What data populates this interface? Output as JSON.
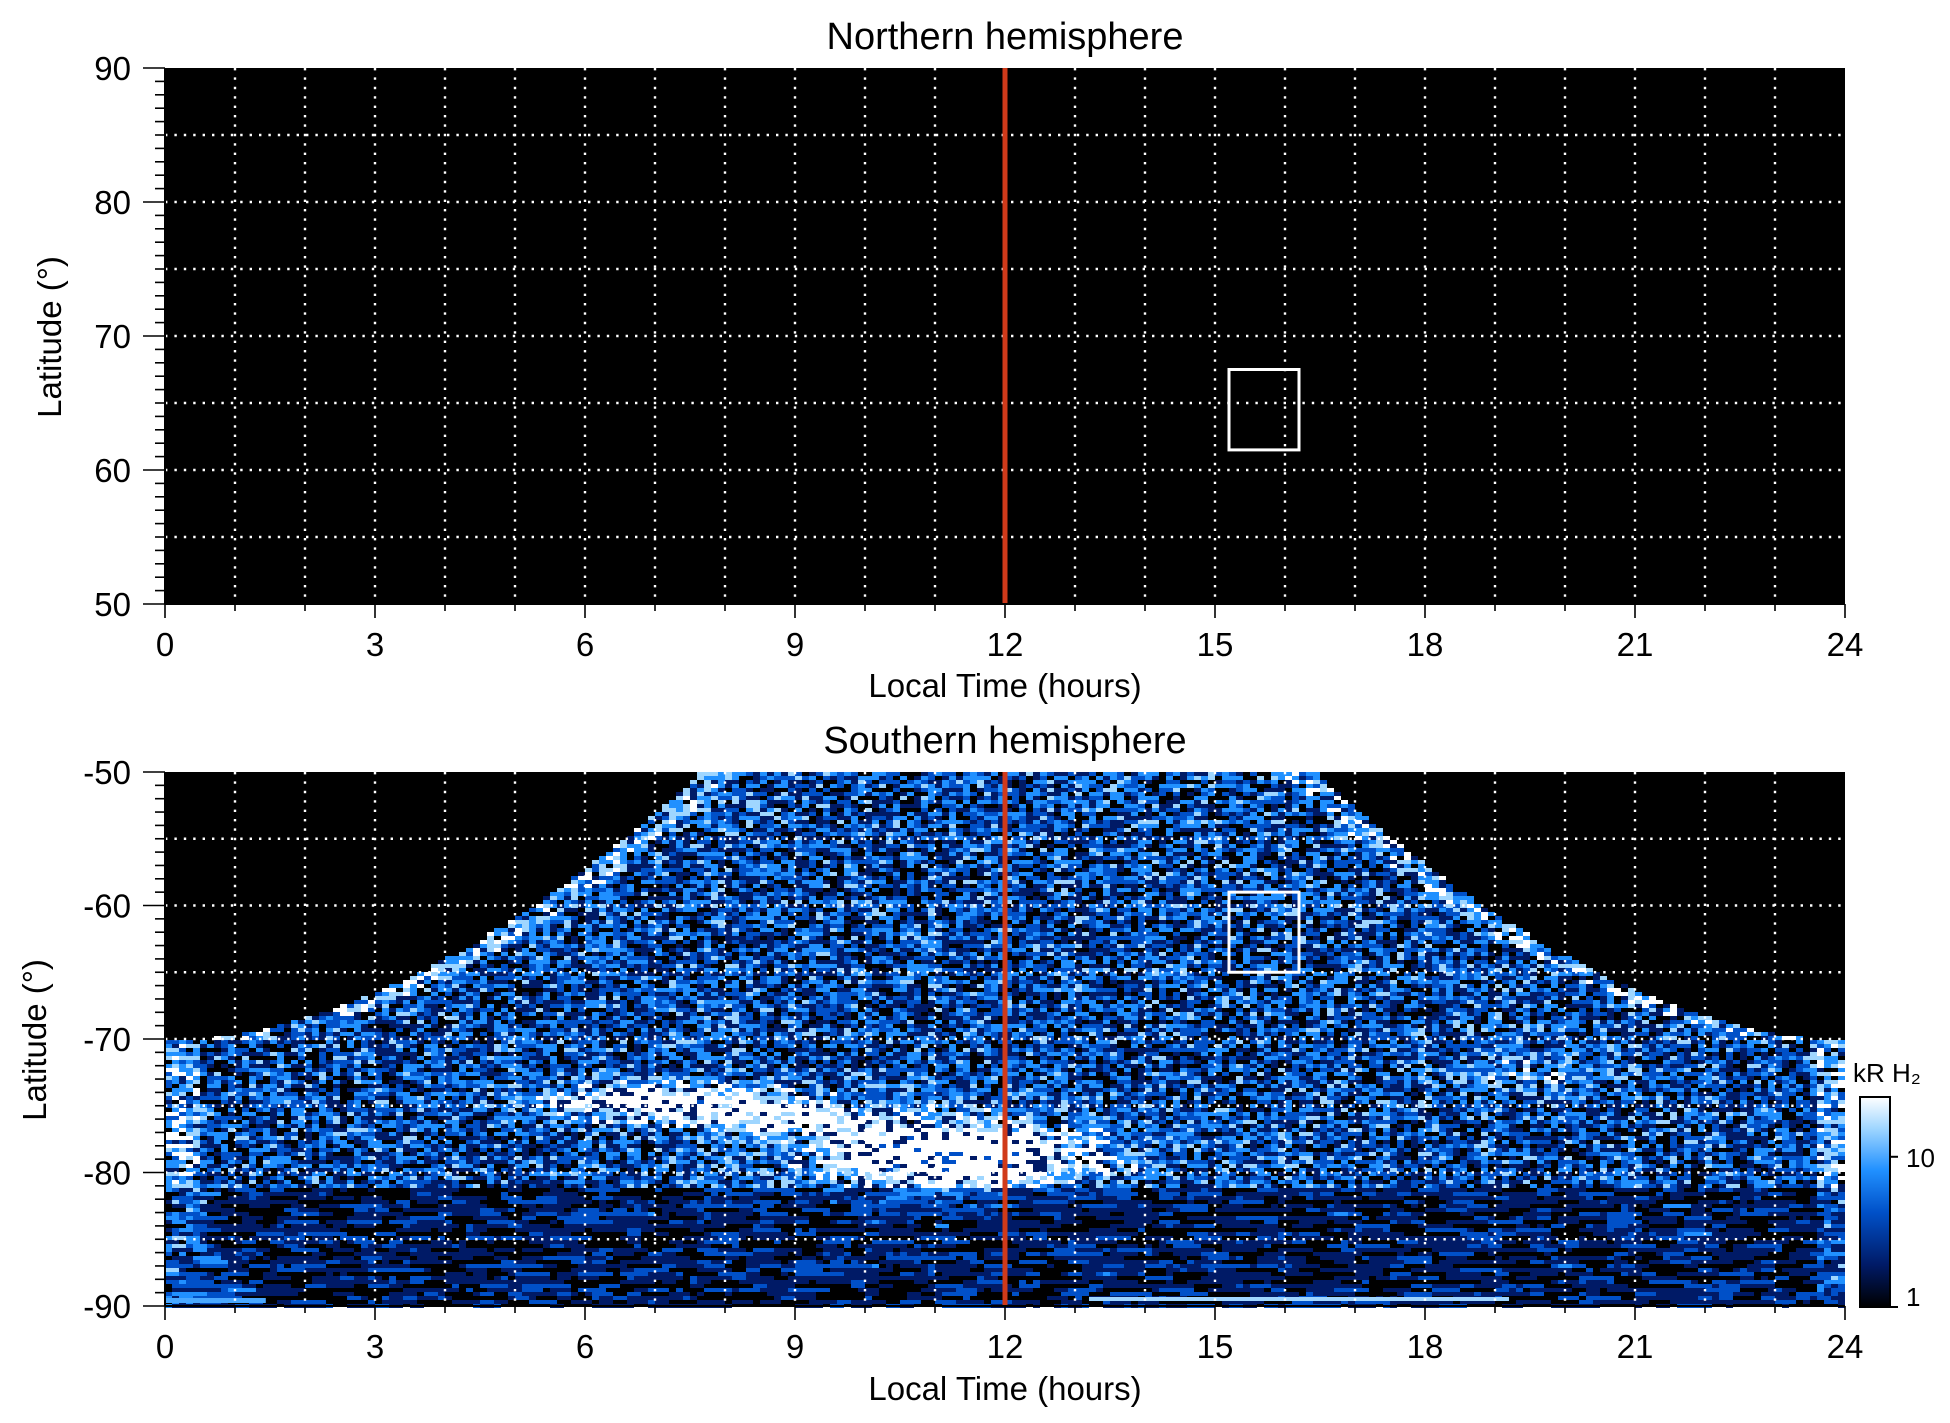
{
  "colors": {
    "background": "#000000",
    "grid": "#ffffff",
    "noon_line": "#d03a1a",
    "box": "#ffffff",
    "colormap": [
      "#000000",
      "#001a66",
      "#0050c8",
      "#2090ff",
      "#9fd6ff",
      "#ffffff"
    ]
  },
  "colorbar": {
    "label": "kR H₂",
    "scale": "log",
    "range": [
      1,
      25
    ],
    "ticks": [
      {
        "value": 10,
        "label": "10"
      },
      {
        "value": 1,
        "label": "1"
      }
    ]
  },
  "chart_data": [
    {
      "type": "heatmap",
      "title": "Northern hemisphere",
      "xlabel": "Local Time (hours)",
      "ylabel": "Latitude (°)",
      "xlim": [
        0,
        24
      ],
      "ylim": [
        50,
        90
      ],
      "xticks": [
        "0",
        "3",
        "6",
        "9",
        "12",
        "15",
        "18",
        "21",
        "24"
      ],
      "yticks": [
        "50",
        "60",
        "70",
        "80",
        "90"
      ],
      "grid": true,
      "noon_line_x": 12,
      "box": {
        "x": [
          15.2,
          16.2
        ],
        "y": [
          61.5,
          67.5
        ]
      },
      "emission": "none"
    },
    {
      "type": "heatmap",
      "title": "Southern hemisphere",
      "xlabel": "Local Time (hours)",
      "ylabel": "Latitude (°)",
      "xlim": [
        0,
        24
      ],
      "ylim": [
        -90,
        -50
      ],
      "xticks": [
        "0",
        "3",
        "6",
        "9",
        "12",
        "15",
        "18",
        "21",
        "24"
      ],
      "yticks": [
        "-90",
        "-80",
        "-70",
        "-60",
        "-50"
      ],
      "grid": true,
      "noon_line_x": 12,
      "box": {
        "x": [
          15.2,
          16.2
        ],
        "y": [
          -65,
          -59
        ]
      },
      "emission": "observed"
    }
  ]
}
